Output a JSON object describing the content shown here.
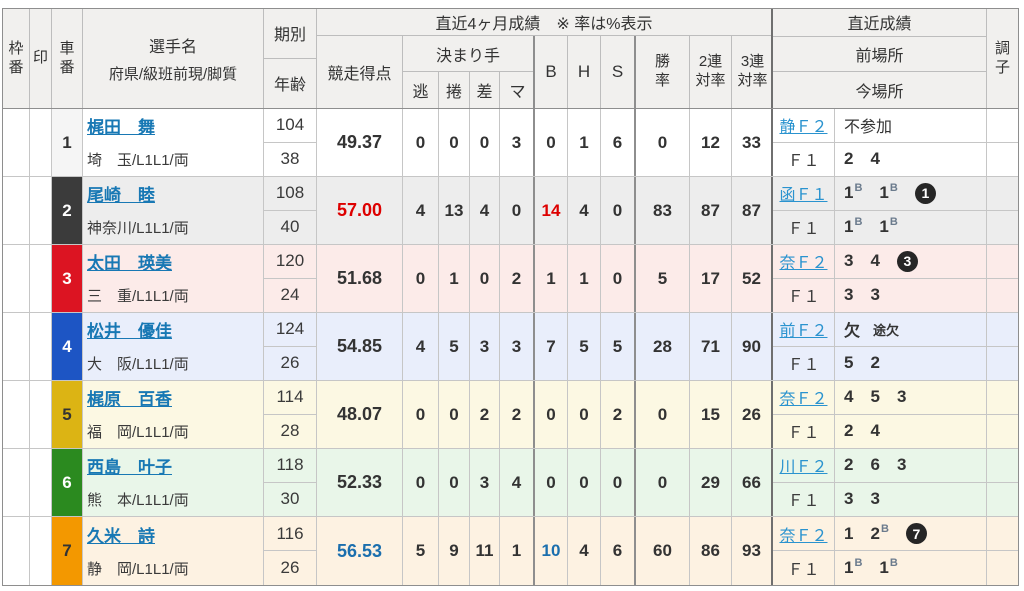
{
  "header": {
    "frame": "枠\n番",
    "mark": "印",
    "car": "車\n番",
    "rider_line1": "選手名",
    "rider_line2": "府県/級班前現/脚質",
    "term": "期別",
    "age": "年齢",
    "recent4_title": "直近4ヶ月成績　※ 率は%表示",
    "score": "競走得点",
    "kimarite": "決まり手",
    "kimarite_cols": [
      "逃",
      "捲",
      "差",
      "マ"
    ],
    "b": "B",
    "h": "H",
    "s": "S",
    "win_rate": "勝\n率",
    "quinella2_rate": "2連\n対率",
    "quinella3_rate": "3連\n対率",
    "recent_title": "直近成績",
    "prev_place": "前場所",
    "cur_place": "今場所",
    "condition": "調\n子"
  },
  "colors": {
    "score_red": "#dd0000",
    "score_blue": "#1b6fae",
    "rider_link": "#1878b4",
    "venue_link": "#2a93cf",
    "car_colors": {
      "1": "#f5f5f5",
      "2": "#3b3b3b",
      "3": "#dc1422",
      "4": "#1d55c4",
      "5": "#dcb414",
      "6": "#2b8a1f",
      "7": "#f39800"
    }
  },
  "rows": [
    {
      "car": "1",
      "name": "梶田　舞",
      "profile": "埼　玉/L1L1/両",
      "term": "104",
      "age": "38",
      "score": "49.37",
      "kimarite": [
        "0",
        "0",
        "0",
        "3"
      ],
      "b": "0",
      "h": "1",
      "s": "6",
      "win": "0",
      "q2": "12",
      "q3": "33",
      "prev_venue": "静Ｆ２",
      "cur_venue": "Ｆ１",
      "prev_text": "不参加",
      "cur_results": [
        {
          "v": "2"
        },
        {
          "v": "4"
        }
      ]
    },
    {
      "car": "2",
      "name": "尾崎　睦",
      "profile": "神奈川/L1L1/両",
      "term": "108",
      "age": "40",
      "score": "57.00",
      "kimarite": [
        "4",
        "13",
        "4",
        "0"
      ],
      "b": "14",
      "h": "4",
      "s": "0",
      "win": "83",
      "q2": "87",
      "q3": "87",
      "prev_venue": "函Ｆ１",
      "cur_venue": "Ｆ１",
      "prev_results": [
        {
          "v": "1",
          "s": "B"
        },
        {
          "v": "1",
          "s": "B"
        }
      ],
      "prev_badge": "1",
      "cur_results": [
        {
          "v": "1",
          "s": "B"
        },
        {
          "v": "1",
          "s": "B"
        }
      ]
    },
    {
      "car": "3",
      "name": "太田　瑛美",
      "profile": "三　重/L1L1/両",
      "term": "120",
      "age": "24",
      "score": "51.68",
      "kimarite": [
        "0",
        "1",
        "0",
        "2"
      ],
      "b": "1",
      "h": "1",
      "s": "0",
      "win": "5",
      "q2": "17",
      "q3": "52",
      "prev_venue": "奈Ｆ２",
      "cur_venue": "Ｆ１",
      "prev_results": [
        {
          "v": "3"
        },
        {
          "v": "4"
        }
      ],
      "prev_badge": "3",
      "cur_results": [
        {
          "v": "3"
        },
        {
          "v": "3"
        }
      ]
    },
    {
      "car": "4",
      "name": "松井　優佳",
      "profile": "大　阪/L1L1/両",
      "term": "124",
      "age": "26",
      "score": "54.85",
      "kimarite": [
        "4",
        "5",
        "3",
        "3"
      ],
      "b": "7",
      "h": "5",
      "s": "5",
      "win": "28",
      "q2": "71",
      "q3": "90",
      "prev_venue": "前Ｆ２",
      "cur_venue": "Ｆ１",
      "prev_results": [
        {
          "v": "欠"
        },
        {
          "v": "途欠"
        }
      ],
      "cur_results": [
        {
          "v": "5"
        },
        {
          "v": "2"
        }
      ]
    },
    {
      "car": "5",
      "name": "梶原　百香",
      "profile": "福　岡/L1L1/両",
      "term": "114",
      "age": "28",
      "score": "48.07",
      "kimarite": [
        "0",
        "0",
        "2",
        "2"
      ],
      "b": "0",
      "h": "0",
      "s": "2",
      "win": "0",
      "q2": "15",
      "q3": "26",
      "prev_venue": "奈Ｆ２",
      "cur_venue": "Ｆ１",
      "prev_results": [
        {
          "v": "4"
        },
        {
          "v": "5"
        },
        {
          "v": "3"
        }
      ],
      "cur_results": [
        {
          "v": "2"
        },
        {
          "v": "4"
        }
      ]
    },
    {
      "car": "6",
      "name": "西島　叶子",
      "profile": "熊　本/L1L1/両",
      "term": "118",
      "age": "30",
      "score": "52.33",
      "kimarite": [
        "0",
        "0",
        "3",
        "4"
      ],
      "b": "0",
      "h": "0",
      "s": "0",
      "win": "0",
      "q2": "29",
      "q3": "66",
      "prev_venue": "川Ｆ２",
      "cur_venue": "Ｆ１",
      "prev_results": [
        {
          "v": "2"
        },
        {
          "v": "6"
        },
        {
          "v": "3"
        }
      ],
      "cur_results": [
        {
          "v": "3"
        },
        {
          "v": "3"
        }
      ]
    },
    {
      "car": "7",
      "name": "久米　詩",
      "profile": "静　岡/L1L1/両",
      "term": "116",
      "age": "26",
      "score": "56.53",
      "kimarite": [
        "5",
        "9",
        "11",
        "1"
      ],
      "b": "10",
      "h": "4",
      "s": "6",
      "win": "60",
      "q2": "86",
      "q3": "93",
      "prev_venue": "奈Ｆ２",
      "cur_venue": "Ｆ１",
      "prev_results": [
        {
          "v": "1"
        },
        {
          "v": "2",
          "s": "B"
        }
      ],
      "prev_badge": "7",
      "cur_results": [
        {
          "v": "1",
          "s": "B"
        },
        {
          "v": "1",
          "s": "B"
        }
      ]
    }
  ]
}
